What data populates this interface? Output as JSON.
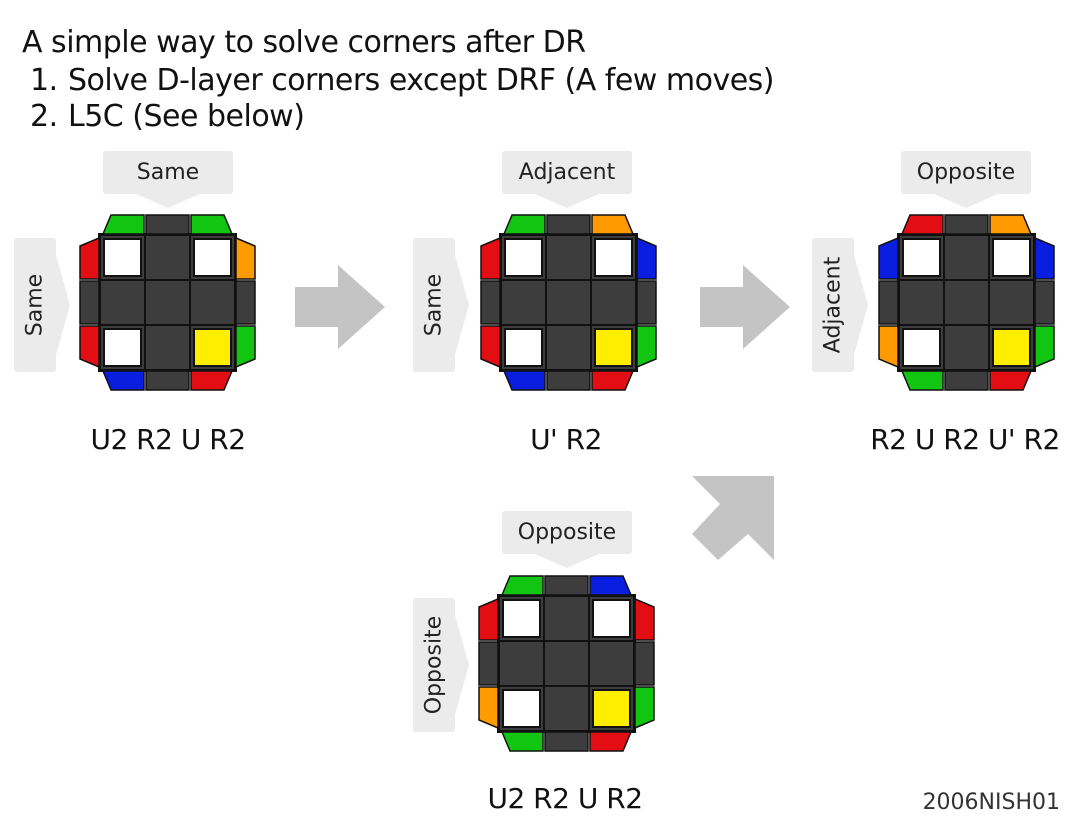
{
  "header": {
    "title": "A  simple way to solve corners after DR",
    "steps": [
      {
        "num": "1.",
        "text": "Solve D-layer corners except DRF (A few moves)"
      },
      {
        "num": "2.",
        "text": "L5C (See below)"
      }
    ]
  },
  "colors": {
    "grey": "#3d3d3d",
    "white": "#ffffff",
    "yellow": "#ffee00",
    "green": "#11c511",
    "red": "#e30d14",
    "orange": "#ff9b00",
    "blue": "#0a1ee0",
    "tag_bg": "#ebebeb",
    "arrow": "#c4c4c4"
  },
  "cases": [
    {
      "top_label": "Same",
      "side_label": "Same",
      "algorithm": "U2 R2 U R2",
      "edges": {
        "top_left": "green",
        "top_right": "green",
        "left_top": "red",
        "left_bottom": "red",
        "right_top": "orange",
        "right_bottom": "green",
        "bottom_left": "blue",
        "bottom_right": "red"
      },
      "corners": {
        "top_left": "white",
        "top_right": "white",
        "bottom_left": "white",
        "bottom_right": "yellow"
      }
    },
    {
      "top_label": "Adjacent",
      "side_label": "Same",
      "algorithm": "U' R2",
      "edges": {
        "top_left": "green",
        "top_right": "orange",
        "left_top": "red",
        "left_bottom": "red",
        "right_top": "blue",
        "right_bottom": "green",
        "bottom_left": "blue",
        "bottom_right": "red"
      },
      "corners": {
        "top_left": "white",
        "top_right": "white",
        "bottom_left": "white",
        "bottom_right": "yellow"
      }
    },
    {
      "top_label": "Opposite",
      "side_label": "Adjacent",
      "algorithm": "R2 U R2 U' R2",
      "edges": {
        "top_left": "red",
        "top_right": "orange",
        "left_top": "blue",
        "left_bottom": "orange",
        "right_top": "blue",
        "right_bottom": "green",
        "bottom_left": "green",
        "bottom_right": "red"
      },
      "corners": {
        "top_left": "white",
        "top_right": "white",
        "bottom_left": "white",
        "bottom_right": "yellow"
      }
    },
    {
      "top_label": "Opposite",
      "side_label": "Opposite",
      "algorithm": "U2 R2 U R2",
      "edges": {
        "top_left": "green",
        "top_right": "blue",
        "left_top": "red",
        "left_bottom": "orange",
        "right_top": "red",
        "right_bottom": "green",
        "bottom_left": "green",
        "bottom_right": "red"
      },
      "corners": {
        "top_left": "white",
        "top_right": "white",
        "bottom_left": "white",
        "bottom_right": "yellow"
      }
    }
  ],
  "credit": "2006NISH01"
}
